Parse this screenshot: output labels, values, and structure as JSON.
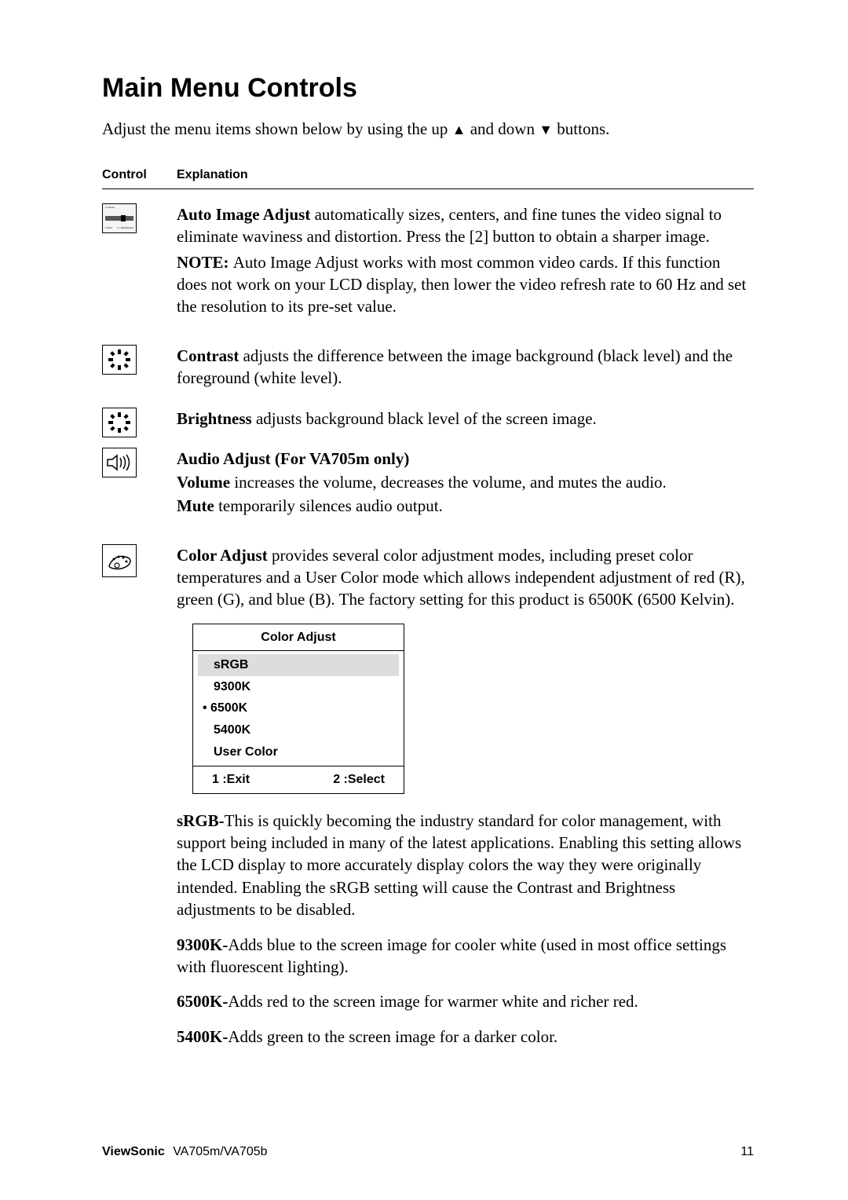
{
  "heading": "Main Menu Controls",
  "intro_parts": {
    "p1": "Adjust the menu items shown below by using the up ",
    "arrow_up": "▲",
    "p2": " and down ",
    "arrow_down": "▼",
    "p3": " buttons."
  },
  "table_head": {
    "control": "Control",
    "explanation": "Explanation"
  },
  "auto_image": {
    "bold": "Auto Image Adjust ",
    "text": "automatically sizes, centers, and fine tunes the video signal to eliminate waviness and distortion. Press the [2] button to obtain a sharper image.",
    "note_bold": "NOTE: ",
    "note_text": "Auto Image Adjust works with most common video cards. If this function does not work on your LCD display, then lower the video refresh rate to 60 Hz and set the resolution to its pre-set value."
  },
  "contrast": {
    "bold": "Contrast ",
    "text": "adjusts the difference between the image background  (black level) and the foreground (white level)."
  },
  "brightness": {
    "bold": "Brightness ",
    "text": "adjusts background black level of the screen image."
  },
  "audio": {
    "title": "Audio Adjust (For VA705m only)",
    "vol_bold": "Volume ",
    "vol_text": "increases the volume, decreases the volume, and mutes the audio.",
    "mute_bold": "Mute ",
    "mute_text": "temporarily silences audio output."
  },
  "color": {
    "bold": "Color Adjust ",
    "text": "provides several color adjustment modes, including preset color temperatures and a User Color mode which allows independent adjustment of red (R), green (G), and blue (B). The factory setting for this product is 6500K (6500 Kelvin)."
  },
  "menu": {
    "title": "Color Adjust",
    "items": [
      "sRGB",
      "9300K",
      "6500K",
      "5400K",
      "User Color"
    ],
    "selected_index": 0,
    "dot_index": 2,
    "footer_left": "1 :Exit",
    "footer_right": "2 :Select"
  },
  "srgb": {
    "bold": "sRGB-",
    "text": "This is quickly becoming the industry standard for color management, with support being included in many of the latest applications. Enabling this setting allows the LCD display to more accurately display colors the way they were originally intended. Enabling the sRGB setting will cause the Contrast and Brightness adjustments to be disabled."
  },
  "k9300": {
    "bold": "9300K-",
    "text": "Adds blue to the screen image for cooler white (used in most office settings with fluorescent lighting)."
  },
  "k6500": {
    "bold": "6500K-",
    "text": "Adds red to the screen image for warmer white and richer red."
  },
  "k5400": {
    "bold": "5400K-",
    "text": "Adds green to the screen image for a darker color."
  },
  "footer": {
    "brand": "ViewSonic",
    "model": "VA705m/VA705b",
    "page": "11"
  }
}
